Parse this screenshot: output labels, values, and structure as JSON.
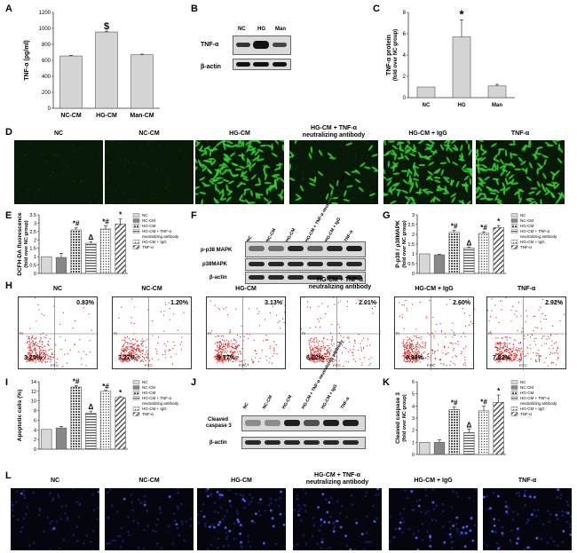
{
  "panels": {
    "A": {
      "label": "A",
      "chart_data": {
        "type": "bar",
        "ylabel": "TNF-α (pg/ml)",
        "ylim": [
          0,
          1200
        ],
        "yticks": [
          0,
          200,
          400,
          600,
          800,
          1000,
          1200
        ],
        "categories": [
          "NC-CM",
          "HG-CM",
          "Man-CM"
        ],
        "values": [
          655,
          955,
          670
        ],
        "errors": [
          8,
          10,
          8
        ],
        "annotations": [
          "",
          "$",
          ""
        ]
      }
    },
    "B": {
      "label": "B",
      "lanes": [
        "NC",
        "HG",
        "Man"
      ],
      "rows": [
        "TNF-α",
        "β-actin"
      ]
    },
    "C": {
      "label": "C",
      "chart_data": {
        "type": "bar",
        "ylabel": "TNF-α protein",
        "ylabel2": "(fold over NC group)",
        "ylim": [
          0,
          8
        ],
        "yticks": [
          0,
          2,
          4,
          6,
          8
        ],
        "categories": [
          "NC",
          "HG",
          "Man"
        ],
        "values": [
          1.0,
          5.7,
          1.1
        ],
        "errors": [
          0,
          1.6,
          0.15
        ],
        "annotations": [
          "",
          "*",
          ""
        ]
      }
    },
    "D": {
      "label": "D",
      "captions": [
        "NC",
        "NC-CM",
        "HG-CM",
        "HG-CM + TNF-α\nneutralizing antibody",
        "HG-CM + IgG",
        "TNF-α"
      ]
    },
    "E": {
      "label": "E",
      "chart_data": {
        "type": "bar",
        "ylabel": "DCFH-DA fluorescence",
        "ylabel2": "(fold over NC group)",
        "ylim": [
          0,
          3.5
        ],
        "yticks": [
          "0",
          "0.5",
          "1",
          "1.5",
          "2",
          "2.5",
          "3",
          "3.5"
        ],
        "categories": [
          "NC",
          "NC-CM",
          "HG-CM",
          "HG-CM + TNF-α neutralizing antibody",
          "HG-CM + IgG",
          "TNF-α"
        ],
        "values": [
          1.0,
          0.95,
          2.6,
          1.8,
          2.65,
          2.95
        ],
        "errors": [
          0,
          0.25,
          0.12,
          0.1,
          0.2,
          0.3
        ],
        "annotations": [
          "",
          "",
          "*#",
          "Δ",
          "*#",
          "*"
        ]
      },
      "legend": [
        "NC",
        "NC-CM",
        "HG-CM",
        "HG-CM + TNF-α",
        "neutralizing antibody",
        "HG-CM + IgG",
        "TNF-α"
      ]
    },
    "F": {
      "label": "F",
      "lanes": [
        "NC",
        "NC-CM",
        "HG-CM",
        "HG-CM + TNF-α neutralizing antibody",
        "HG-CM + IgG",
        "TNF-α"
      ],
      "rows": [
        "p-p38 MAPK",
        "p38MAPK",
        "β-actin"
      ]
    },
    "G": {
      "label": "G",
      "chart_data": {
        "type": "bar",
        "ylabel": "P-p38 / p38MAPK",
        "ylabel2": "(fold over NC group)",
        "ylim": [
          0,
          3
        ],
        "yticks": [
          "0",
          "0.5",
          "1",
          "1.5",
          "2",
          "2.5",
          "3"
        ],
        "categories": [
          "NC",
          "NC-CM",
          "HG-CM",
          "HG-CM + TNF-α neutralizing antibody",
          "HG-CM + IgG",
          "TNF-α"
        ],
        "values": [
          1.0,
          0.95,
          2.1,
          1.3,
          2.05,
          2.35
        ],
        "errors": [
          0,
          0.03,
          0.1,
          0.05,
          0.08,
          0.1
        ],
        "annotations": [
          "",
          "",
          "*#",
          "Δ",
          "*#",
          "*"
        ]
      },
      "legend": [
        "NC",
        "NC-CM",
        "HG-CM",
        "HG-CM + TNF-α",
        "neutralizing antibody",
        "HG-CM + IgG",
        "TNF-α"
      ]
    },
    "H": {
      "label": "H",
      "axis_x": "FITC",
      "axis_y": "PI",
      "plots": [
        {
          "caption": "NC",
          "upper": "0.83%",
          "lower": "3.25%"
        },
        {
          "caption": "NC-CM",
          "upper": "1.20%",
          "lower": "3.27%"
        },
        {
          "caption": "HG-CM",
          "upper": "3.13%",
          "lower": "9.77%"
        },
        {
          "caption": "HG-CM + TNF-α\nneutralizing antibody",
          "upper": "2.01%",
          "lower": "6.02%"
        },
        {
          "caption": "HG-CM + IgG",
          "upper": "2.60%",
          "lower": "9.38%"
        },
        {
          "caption": "TNF-α",
          "upper": "2.92%",
          "lower": "7.82%"
        }
      ]
    },
    "I": {
      "label": "I",
      "chart_data": {
        "type": "bar",
        "ylabel": "Apoptotic cells (%)",
        "ylim": [
          0,
          14
        ],
        "yticks": [
          "0",
          "2",
          "4",
          "6",
          "8",
          "10",
          "12",
          "14"
        ],
        "categories": [
          "NC",
          "NC-CM",
          "HG-CM",
          "HG-CM + TNF-α neutralizing antibody",
          "HG-CM + IgG",
          "TNF-α"
        ],
        "values": [
          4.1,
          4.4,
          12.9,
          7.5,
          12.0,
          10.7
        ],
        "errors": [
          0,
          0.3,
          0.3,
          0.4,
          0.2,
          0.2
        ],
        "annotations": [
          "",
          "",
          "*#",
          "Δ",
          "*#",
          "*"
        ]
      },
      "legend": [
        "NC",
        "NC-CM",
        "HG-CM",
        "HG-CM + TNF-α",
        "neutralizing antibody",
        "HG-CM + IgG",
        "TNF-α"
      ]
    },
    "J": {
      "label": "J",
      "lanes": [
        "NC",
        "NC-CM",
        "HG-CM",
        "HG-CM + TNF-α neutralizing antibody",
        "HG-CM + IgG",
        "TNF-α"
      ],
      "rows": [
        "Cleaved",
        "caspase 3",
        "β-actin"
      ]
    },
    "K": {
      "label": "K",
      "chart_data": {
        "type": "bar",
        "ylabel": "Cleaved caspase 3",
        "ylabel2": "(fold over NC group)",
        "ylim": [
          0,
          6
        ],
        "yticks": [
          "0",
          "1",
          "2",
          "3",
          "4",
          "5",
          "6"
        ],
        "categories": [
          "NC",
          "NC-CM",
          "HG-CM",
          "HG-CM + TNF-α neutralizing antibody",
          "HG-CM + IgG",
          "TNF-α"
        ],
        "values": [
          1.0,
          1.0,
          3.7,
          1.8,
          3.6,
          4.3
        ],
        "errors": [
          0,
          0.2,
          0.2,
          0.3,
          0.4,
          0.6
        ],
        "annotations": [
          "",
          "",
          "*#",
          "Δ",
          "*#",
          "*"
        ]
      },
      "legend": [
        "NC",
        "NC-CM",
        "HG-CM",
        "HG-CM + TNF-α",
        "neutralizing antibody",
        "HG-CM + IgG",
        "TNF-α"
      ]
    },
    "L": {
      "label": "L",
      "captions": [
        "NC",
        "NC-CM",
        "HG-CM",
        "HG-CM + TNF-α\nneutralizing  antibody",
        "HG-CM + IgG",
        "TNF-α"
      ]
    }
  },
  "colors": {
    "bar_fill": "#d4d4d4",
    "bar_stroke": "#555555",
    "green_cells": "#2fd12a",
    "flow_dots": "#e0241b",
    "nuclei": "#4a56ff"
  }
}
